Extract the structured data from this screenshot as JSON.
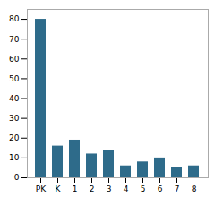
{
  "chart_data": {
    "type": "bar",
    "categories": [
      "PK",
      "K",
      "1",
      "2",
      "3",
      "4",
      "5",
      "6",
      "7",
      "8"
    ],
    "values": [
      80,
      16,
      19,
      12,
      14,
      6,
      8,
      10,
      5,
      6
    ],
    "color": "#2e6b8a",
    "ylim": [
      0,
      85
    ],
    "yticks": [
      0,
      10,
      20,
      30,
      40,
      50,
      60,
      70,
      80
    ],
    "grid": false
  }
}
